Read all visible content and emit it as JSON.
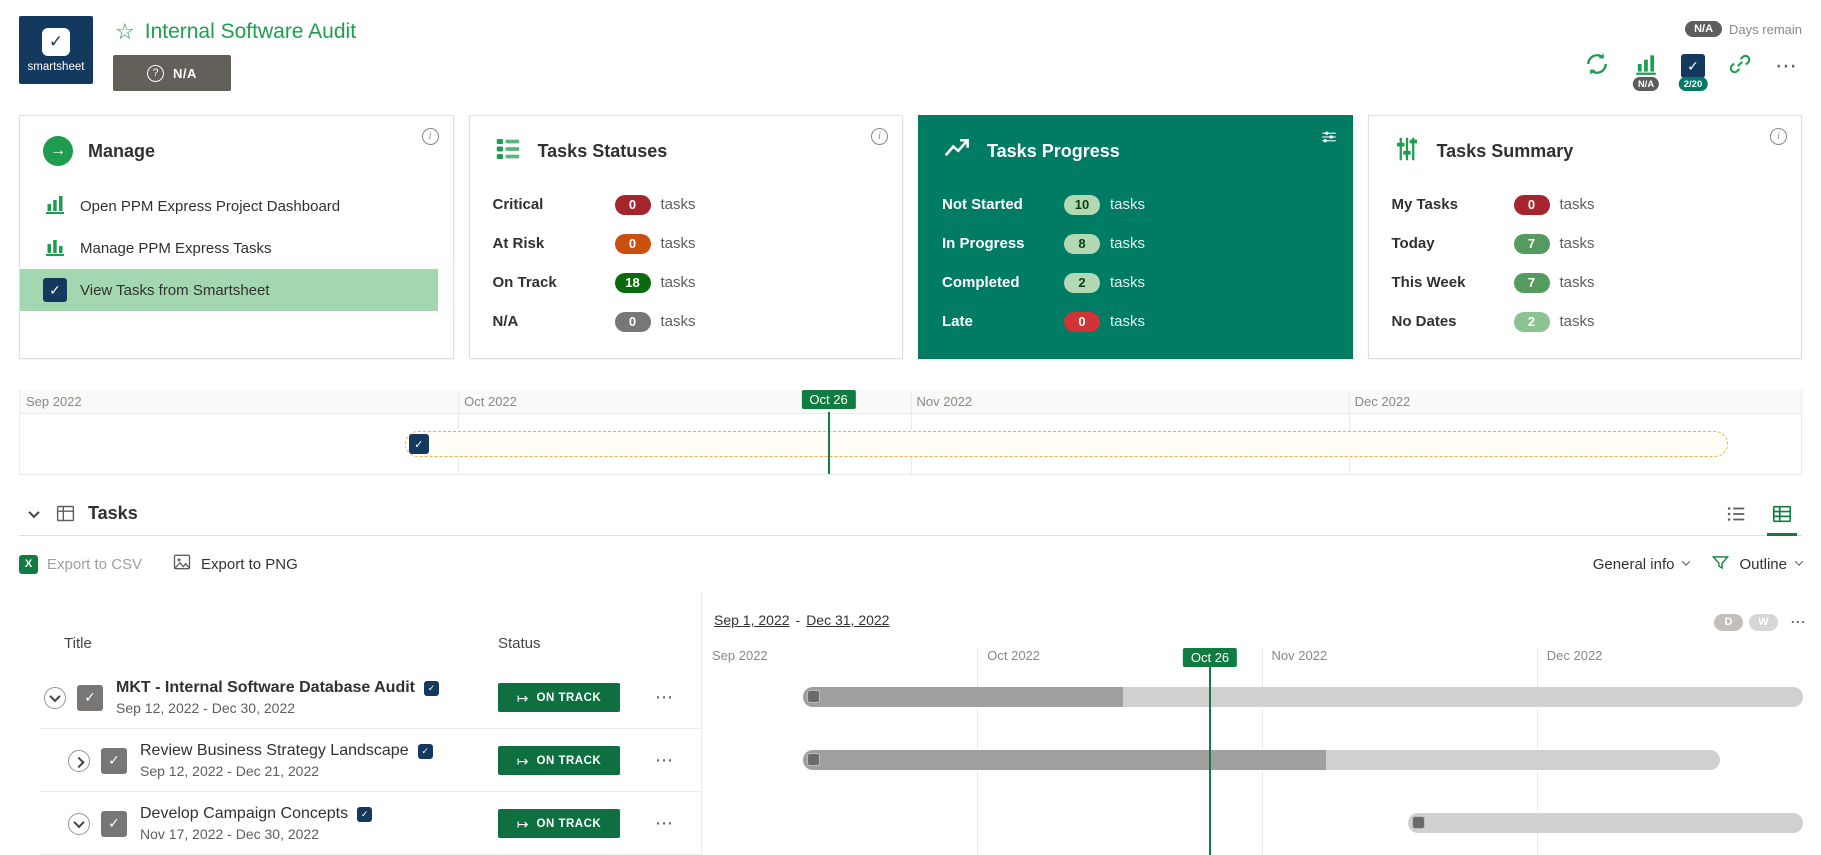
{
  "colors": {
    "brand_green": "#1f9d4f",
    "dark_green": "#107c41",
    "teal_card": "#007b64",
    "smartsheet_navy": "#14395f",
    "critical_red": "#a4262c",
    "at_risk_orange": "#ca5010",
    "on_track_green": "#0b6a0b",
    "neutral_gray": "#797775"
  },
  "header": {
    "brand": "smartsheet",
    "project_title": "Internal Software Audit",
    "health_button_label": "N/A",
    "days_remain_value": "N/A",
    "days_remain_label": "Days remain",
    "chart_icon_badge": "N/A",
    "sheet_icon_badge": "2/20"
  },
  "cards": {
    "manage": {
      "title": "Manage",
      "items": [
        {
          "label": "Open PPM Express Project Dashboard"
        },
        {
          "label": "Manage PPM Express Tasks"
        },
        {
          "label": "View Tasks from Smartsheet"
        }
      ]
    },
    "statuses": {
      "title": "Tasks Statuses",
      "rows": [
        {
          "label": "Critical",
          "count": "0",
          "unit": "tasks"
        },
        {
          "label": "At Risk",
          "count": "0",
          "unit": "tasks"
        },
        {
          "label": "On Track",
          "count": "18",
          "unit": "tasks"
        },
        {
          "label": "N/A",
          "count": "0",
          "unit": "tasks"
        }
      ]
    },
    "progress": {
      "title": "Tasks Progress",
      "rows": [
        {
          "label": "Not Started",
          "count": "10",
          "unit": "tasks"
        },
        {
          "label": "In Progress",
          "count": "8",
          "unit": "tasks"
        },
        {
          "label": "Completed",
          "count": "2",
          "unit": "tasks"
        },
        {
          "label": "Late",
          "count": "0",
          "unit": "tasks"
        }
      ]
    },
    "summary": {
      "title": "Tasks Summary",
      "rows": [
        {
          "label": "My Tasks",
          "count": "0",
          "unit": "tasks"
        },
        {
          "label": "Today",
          "count": "7",
          "unit": "tasks"
        },
        {
          "label": "This Week",
          "count": "7",
          "unit": "tasks"
        },
        {
          "label": "No Dates",
          "count": "2",
          "unit": "tasks"
        }
      ]
    }
  },
  "mini_timeline": {
    "months": [
      "Sep 2022",
      "Oct 2022",
      "Nov 2022",
      "Dec 2022"
    ],
    "today_label": "Oct 26",
    "today_pct": 45.4,
    "project_bar": {
      "start_pct": 21.6,
      "end_pct": 95.9,
      "progress_pct": 0
    }
  },
  "tasks": {
    "section_title": "Tasks",
    "export_csv_label": "Export to CSV",
    "export_png_label": "Export to PNG",
    "general_info_label": "General info",
    "outline_label": "Outline",
    "column_title": "Title",
    "column_status": "Status",
    "range_start": "Sep 1, 2022",
    "range_separator": "-",
    "range_end": "Dec 31, 2022",
    "zoom_day": "D",
    "zoom_week": "W",
    "months": [
      "Sep 2022",
      "Oct 2022",
      "Nov 2022",
      "Dec 2022"
    ],
    "today_label": "Oct 26",
    "today_pct": 45.4,
    "rows": [
      {
        "title": "MKT - Internal Software Database Audit",
        "dates": "Sep 12, 2022 - Dec 30, 2022",
        "status": "ON TRACK",
        "bar": {
          "start_pct": 9.0,
          "end_pct": 98.4,
          "progress_pct": 32
        }
      },
      {
        "title": "Review Business Strategy Landscape",
        "dates": "Sep 12, 2022 - Dec 21, 2022",
        "status": "ON TRACK",
        "bar": {
          "start_pct": 9.0,
          "end_pct": 91.0,
          "progress_pct": 57
        }
      },
      {
        "title": "Develop Campaign Concepts",
        "dates": "Nov 17, 2022 - Dec 30, 2022",
        "status": "ON TRACK",
        "bar": {
          "start_pct": 63.1,
          "end_pct": 98.4,
          "progress_pct": 0
        }
      }
    ]
  }
}
